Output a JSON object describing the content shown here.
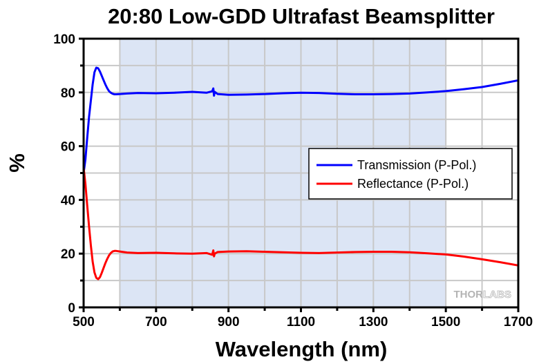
{
  "chart_data": {
    "type": "line",
    "title": "20:80 Low-GDD Ultrafast Beamsplitter",
    "xlabel": "Wavelength (nm)",
    "ylabel": "%",
    "xlim": [
      500,
      1700
    ],
    "ylim": [
      0,
      100
    ],
    "xticks": [
      500,
      700,
      900,
      1100,
      1300,
      1500,
      1700
    ],
    "xticks_minor": [
      600,
      800,
      1000,
      1200,
      1400,
      1600
    ],
    "yticks": [
      0,
      20,
      40,
      60,
      80,
      100
    ],
    "yticks_minor": [
      10,
      30,
      50,
      70,
      90
    ],
    "grid": true,
    "highlight_band": {
      "x_from": 600,
      "x_to": 1500,
      "color": "#dce5f5"
    },
    "legend": {
      "position": "center-right"
    },
    "watermark": "THORLABS",
    "series": [
      {
        "name": "Transmission (P-Pol.)",
        "color": "#0000ff",
        "x": [
          500,
          505,
          510,
          515,
          520,
          525,
          530,
          535,
          540,
          545,
          550,
          555,
          560,
          565,
          570,
          575,
          580,
          585,
          590,
          600,
          620,
          650,
          700,
          750,
          800,
          840,
          855,
          858,
          860,
          862,
          870,
          900,
          950,
          1000,
          1050,
          1100,
          1150,
          1200,
          1250,
          1300,
          1350,
          1400,
          1450,
          1500,
          1550,
          1600,
          1650,
          1700
        ],
        "y": [
          50,
          55,
          63,
          71,
          77,
          83,
          87.5,
          89.2,
          89,
          87.8,
          86.2,
          84.6,
          83,
          81.6,
          80.5,
          79.9,
          79.5,
          79.3,
          79.3,
          79.4,
          79.6,
          79.8,
          79.7,
          79.9,
          80.2,
          79.9,
          80.4,
          81.5,
          78.8,
          80.2,
          79.4,
          79.1,
          79.2,
          79.4,
          79.7,
          79.9,
          79.8,
          79.5,
          79.3,
          79.3,
          79.4,
          79.6,
          80.0,
          80.5,
          81.2,
          82.0,
          83.2,
          84.5
        ]
      },
      {
        "name": "Reflectance (P-Pol.)",
        "color": "#ff0000",
        "x": [
          500,
          505,
          510,
          515,
          520,
          525,
          530,
          535,
          540,
          545,
          550,
          555,
          560,
          565,
          570,
          575,
          580,
          585,
          590,
          600,
          620,
          650,
          700,
          750,
          800,
          840,
          855,
          858,
          860,
          862,
          870,
          900,
          950,
          1000,
          1050,
          1100,
          1150,
          1200,
          1250,
          1300,
          1350,
          1400,
          1450,
          1500,
          1550,
          1600,
          1650,
          1700
        ],
        "y": [
          52,
          46,
          38,
          30,
          23,
          17,
          13,
          11,
          10.5,
          11.2,
          12.8,
          14.6,
          16.4,
          18,
          19.3,
          20.2,
          20.8,
          21,
          21,
          20.8,
          20.4,
          20.2,
          20.3,
          20.1,
          20.0,
          20.2,
          19.6,
          21.2,
          19.0,
          20.0,
          20.6,
          20.8,
          20.9,
          20.7,
          20.5,
          20.3,
          20.2,
          20.4,
          20.6,
          20.7,
          20.7,
          20.5,
          20.1,
          19.7,
          18.9,
          17.9,
          16.8,
          15.6
        ]
      }
    ]
  }
}
